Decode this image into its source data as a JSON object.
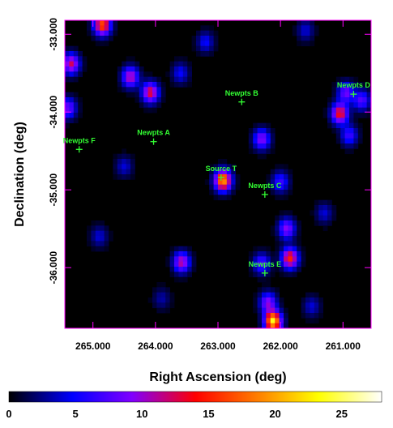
{
  "chart_data": {
    "type": "heatmap",
    "xlabel": "Right Ascension (deg)",
    "ylabel": "Declination (deg)",
    "xlim": [
      265.45,
      260.55
    ],
    "ylim": [
      -36.78,
      -32.82
    ],
    "x_ticks": [
      {
        "value": 265.0,
        "label": "265.000"
      },
      {
        "value": 264.0,
        "label": "264.000"
      },
      {
        "value": 263.0,
        "label": "263.000"
      },
      {
        "value": 262.0,
        "label": "262.000"
      },
      {
        "value": 261.0,
        "label": "261.000"
      }
    ],
    "y_ticks": [
      {
        "value": -33.0,
        "label": "-33.000"
      },
      {
        "value": -34.0,
        "label": "-34.000"
      },
      {
        "value": -35.0,
        "label": "-35.000"
      },
      {
        "value": -36.0,
        "label": "-36.000"
      }
    ],
    "colorbar": {
      "range": [
        0,
        28
      ],
      "ticks": [
        {
          "value": 0,
          "label": "0"
        },
        {
          "value": 5,
          "label": "5"
        },
        {
          "value": 10,
          "label": "10"
        },
        {
          "value": 15,
          "label": "15"
        },
        {
          "value": 20,
          "label": "20"
        },
        {
          "value": 25,
          "label": "25"
        }
      ]
    },
    "sources": [
      {
        "label": "Newpts D",
        "ra": 260.83,
        "dec": -33.77
      },
      {
        "label": "Newpts B",
        "ra": 262.62,
        "dec": -33.87
      },
      {
        "label": "Newpts A",
        "ra": 264.03,
        "dec": -34.38
      },
      {
        "label": "Newpts F",
        "ra": 265.22,
        "dec": -34.48
      },
      {
        "label": "Source T",
        "ra": 262.95,
        "dec": -34.84
      },
      {
        "label": "Newpts C",
        "ra": 262.25,
        "dec": -35.06
      },
      {
        "label": "Newpts E",
        "ra": 262.25,
        "dec": -36.07
      }
    ],
    "emission_blobs": [
      {
        "ra": 264.85,
        "dec": -32.88,
        "peak": 18
      },
      {
        "ra": 265.35,
        "dec": -33.38,
        "peak": 13
      },
      {
        "ra": 264.4,
        "dec": -33.55,
        "peak": 12
      },
      {
        "ra": 264.08,
        "dec": -33.75,
        "peak": 14
      },
      {
        "ra": 265.4,
        "dec": -33.95,
        "peak": 9
      },
      {
        "ra": 263.6,
        "dec": -33.5,
        "peak": 5
      },
      {
        "ra": 262.3,
        "dec": -34.35,
        "peak": 10
      },
      {
        "ra": 262.0,
        "dec": -34.9,
        "peak": 7
      },
      {
        "ra": 262.92,
        "dec": -34.88,
        "peak": 21
      },
      {
        "ra": 261.9,
        "dec": -35.5,
        "peak": 10
      },
      {
        "ra": 261.85,
        "dec": -35.88,
        "peak": 16
      },
      {
        "ra": 262.3,
        "dec": -35.95,
        "peak": 8
      },
      {
        "ra": 263.58,
        "dec": -35.93,
        "peak": 12
      },
      {
        "ra": 262.12,
        "dec": -36.69,
        "peak": 24
      },
      {
        "ra": 262.2,
        "dec": -36.45,
        "peak": 10
      },
      {
        "ra": 260.95,
        "dec": -33.75,
        "peak": 9
      },
      {
        "ra": 261.05,
        "dec": -34.02,
        "peak": 15
      },
      {
        "ra": 260.7,
        "dec": -33.85,
        "peak": 8
      },
      {
        "ra": 260.9,
        "dec": -34.3,
        "peak": 7
      },
      {
        "ra": 264.5,
        "dec": -34.7,
        "peak": 4
      },
      {
        "ra": 263.2,
        "dec": -33.1,
        "peak": 5
      },
      {
        "ra": 261.3,
        "dec": -35.3,
        "peak": 4
      },
      {
        "ra": 261.5,
        "dec": -36.5,
        "peak": 4
      },
      {
        "ra": 264.9,
        "dec": -35.6,
        "peak": 4
      },
      {
        "ra": 263.9,
        "dec": -36.4,
        "peak": 3
      },
      {
        "ra": 261.6,
        "dec": -32.95,
        "peak": 4
      }
    ]
  }
}
